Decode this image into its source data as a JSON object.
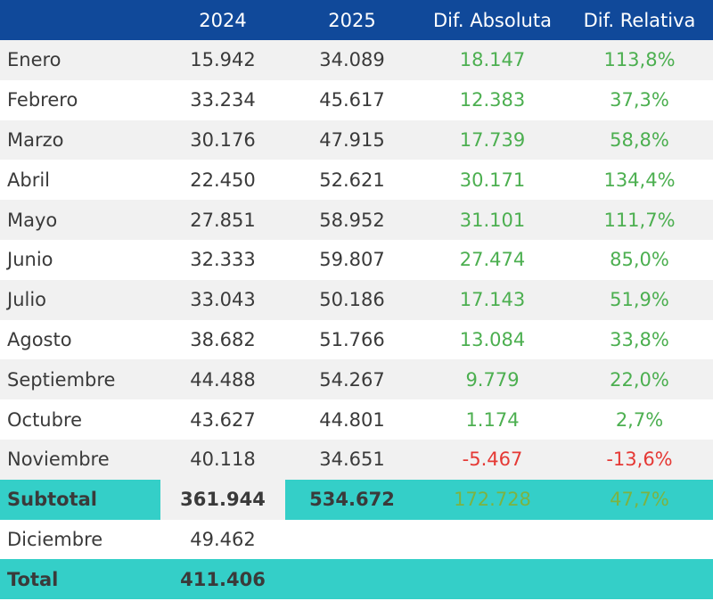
{
  "header": {
    "c0": "",
    "c1": "2024",
    "c2": "2025",
    "c3": "Dif. Absoluta",
    "c4": "Dif. Relativa"
  },
  "rows": [
    {
      "mes": "Enero",
      "y2024": "15.942",
      "y2025": "34.089",
      "abs": "18.147",
      "rel": "113,8%"
    },
    {
      "mes": "Febrero",
      "y2024": "33.234",
      "y2025": "45.617",
      "abs": "12.383",
      "rel": "37,3%"
    },
    {
      "mes": "Marzo",
      "y2024": "30.176",
      "y2025": "47.915",
      "abs": "17.739",
      "rel": "58,8%"
    },
    {
      "mes": "Abril",
      "y2024": "22.450",
      "y2025": "52.621",
      "abs": "30.171",
      "rel": "134,4%"
    },
    {
      "mes": "Mayo",
      "y2024": "27.851",
      "y2025": "58.952",
      "abs": "31.101",
      "rel": "111,7%"
    },
    {
      "mes": "Junio",
      "y2024": "32.333",
      "y2025": "59.807",
      "abs": "27.474",
      "rel": "85,0%"
    },
    {
      "mes": "Julio",
      "y2024": "33.043",
      "y2025": "50.186",
      "abs": "17.143",
      "rel": "51,9%"
    },
    {
      "mes": "Agosto",
      "y2024": "38.682",
      "y2025": "51.766",
      "abs": "13.084",
      "rel": "33,8%"
    },
    {
      "mes": "Septiembre",
      "y2024": "44.488",
      "y2025": "54.267",
      "abs": "9.779",
      "rel": "22,0%"
    },
    {
      "mes": "Octubre",
      "y2024": "43.627",
      "y2025": "44.801",
      "abs": "1.174",
      "rel": "2,7%"
    },
    {
      "mes": "Noviembre",
      "y2024": "40.118",
      "y2025": "34.651",
      "abs": "-5.467",
      "rel": "-13,6%"
    }
  ],
  "subtotal": {
    "mes": "Subtotal",
    "y2024": "361.944",
    "y2025": "534.672",
    "abs": "172.728",
    "rel": "47,7%"
  },
  "diciembre": {
    "mes": "Diciembre",
    "y2024": "49.462"
  },
  "total": {
    "mes": "Total",
    "y2024": "411.406"
  },
  "colors": {
    "header": "#10499a",
    "highlight": "#34cfc8",
    "positive": "#4caf50",
    "negative": "#e53935",
    "stripe": "#f1f1f1"
  }
}
